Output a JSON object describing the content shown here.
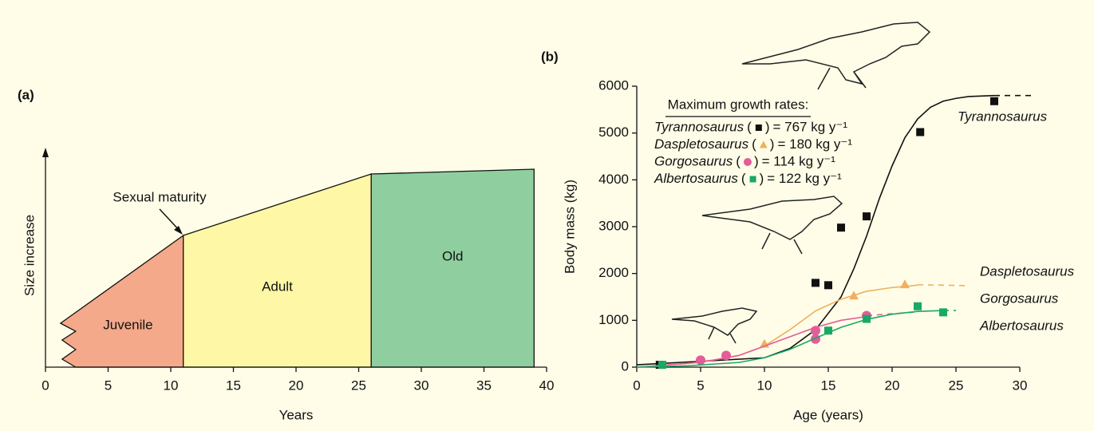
{
  "chart_data": [
    {
      "type": "stage",
      "label": "(a)",
      "xlabel": "Years",
      "ylabel": "Size increase",
      "xlim": [
        0,
        40
      ],
      "xticks": [
        0,
        5,
        10,
        15,
        20,
        25,
        30,
        35,
        40
      ],
      "stages": [
        {
          "name": "Juvenile",
          "color": "#f4a98a",
          "x": [
            1.2,
            11
          ]
        },
        {
          "name": "Adult",
          "color": "#fdf7a6",
          "x": [
            11,
            26
          ]
        },
        {
          "name": "Old",
          "color": "#8fcf9f",
          "x": [
            26,
            39
          ]
        }
      ],
      "annotation": "Sexual maturity"
    },
    {
      "type": "scatter",
      "label": "(b)",
      "xlabel": "Age (years)",
      "ylabel": "Body mass (kg)",
      "xlim": [
        0,
        30
      ],
      "xticks": [
        0,
        5,
        10,
        15,
        20,
        25,
        30
      ],
      "ylim": [
        0,
        6000
      ],
      "yticks": [
        0,
        1000,
        2000,
        3000,
        4000,
        5000,
        6000
      ],
      "legend_title": "Maximum growth rates:",
      "legend_brackets": [
        "(",
        ")"
      ],
      "series": [
        {
          "name": "Tyrannosaurus",
          "color": "#111111",
          "marker": "square",
          "x": [
            1.8,
            14,
            15,
            16,
            18,
            22.2,
            28
          ],
          "values": [
            50,
            1800,
            1750,
            2980,
            3220,
            5020,
            5680
          ],
          "growth_rate": {
            "value": 767,
            "label": "= 767 kg y⁻¹"
          },
          "fit": {
            "x": [
              0,
              10,
              12,
              14,
              16,
              17,
              18,
              19,
              20,
              21,
              22,
              23,
              24,
              25,
              26,
              28
            ],
            "values": [
              50,
              200,
              400,
              800,
              1500,
              2100,
              2800,
              3600,
              4300,
              4900,
              5300,
              5550,
              5680,
              5740,
              5780,
              5800
            ]
          },
          "extension": {
            "x": [
              28,
              31
            ],
            "values": [
              5800,
              5800
            ]
          }
        },
        {
          "name": "Daspletosaurus",
          "color": "#f0b060",
          "marker": "triangle",
          "x": [
            10,
            17,
            21
          ],
          "values": [
            500,
            1530,
            1770
          ],
          "growth_rate": {
            "value": 180,
            "label": "= 180 kg y⁻¹"
          },
          "fit": {
            "x": [
              0,
              5,
              8,
              10,
              12,
              14,
              16,
              18,
              20,
              22
            ],
            "values": [
              0,
              100,
              250,
              450,
              800,
              1200,
              1450,
              1620,
              1700,
              1750
            ]
          },
          "extension": {
            "x": [
              22,
              26
            ],
            "values": [
              1760,
              1740
            ]
          }
        },
        {
          "name": "Gorgosaurus",
          "color": "#e45c9a",
          "marker": "circle",
          "x": [
            5,
            7,
            14,
            14,
            18
          ],
          "values": [
            150,
            250,
            780,
            600,
            1100
          ],
          "growth_rate": {
            "value": 114,
            "label": "= 114 kg y⁻¹"
          },
          "fit": {
            "x": [
              0,
              4,
              6,
              8,
              10,
              12,
              14,
              16,
              18
            ],
            "values": [
              0,
              80,
              150,
              250,
              450,
              650,
              850,
              1000,
              1080
            ]
          },
          "extension": {
            "x": [
              18,
              22
            ],
            "values": [
              1100,
              1180
            ]
          }
        },
        {
          "name": "Albertosaurus",
          "color": "#1aa866",
          "marker": "square",
          "x": [
            2,
            15,
            18,
            22,
            24
          ],
          "values": [
            50,
            780,
            1030,
            1300,
            1170
          ],
          "growth_rate": {
            "value": 122,
            "label": "= 122 kg y⁻¹"
          },
          "fit": {
            "x": [
              0,
              4,
              8,
              10,
              12,
              14,
              16,
              18,
              20,
              22,
              24
            ],
            "values": [
              0,
              30,
              100,
              200,
              380,
              620,
              850,
              1020,
              1130,
              1190,
              1210
            ]
          },
          "extension": {
            "x": [
              24,
              25
            ],
            "values": [
              1210,
              1210
            ]
          }
        }
      ]
    }
  ]
}
